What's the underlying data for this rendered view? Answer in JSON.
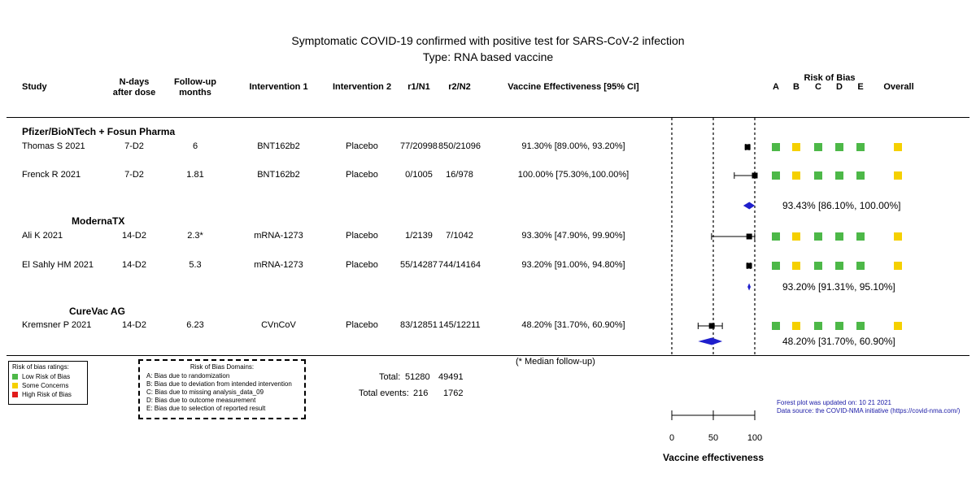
{
  "title_line1": "Symptomatic COVID-19 confirmed with positive test for SARS-CoV-2 infection",
  "title_line2": "Type: RNA based vaccine",
  "headers": {
    "study": "Study",
    "ndays_1": "N-days",
    "ndays_2": "after dose",
    "followup_1": "Follow-up",
    "followup_2": "months",
    "intervention1": "Intervention 1",
    "intervention2": "Intervention 2",
    "r1n1": "r1/N1",
    "r2n2": "r2/N2",
    "ve": "Vaccine Effectiveness [95% CI]",
    "rob": "Risk of Bias",
    "domains": [
      "A",
      "B",
      "C",
      "D",
      "E"
    ],
    "overall": "Overall"
  },
  "groups": [
    {
      "name": "Pfizer/BioNTech + Fosun Pharma",
      "studies": [
        {
          "study": "Thomas S 2021",
          "ndays": "7-D2",
          "followup": "6",
          "int1": "BNT162b2",
          "int2": "Placebo",
          "r1n1": "77/20998",
          "r2n2": "850/21096",
          "ve": "91.30% [89.00%, 93.20%]"
        },
        {
          "study": "Frenck R 2021",
          "ndays": "7-D2",
          "followup": "1.81",
          "int1": "BNT162b2",
          "int2": "Placebo",
          "r1n1": "0/1005",
          "r2n2": "16/978",
          "ve": "100.00% [75.30%,100.00%]"
        }
      ],
      "pooled": "93.43% [86.10%, 100.00%]"
    },
    {
      "name": "ModernaTX",
      "studies": [
        {
          "study": "Ali K 2021",
          "ndays": "14-D2",
          "followup": "2.3*",
          "int1": "mRNA-1273",
          "int2": "Placebo",
          "r1n1": "1/2139",
          "r2n2": "7/1042",
          "ve": "93.30% [47.90%, 99.90%]"
        },
        {
          "study": "El Sahly HM 2021",
          "ndays": "14-D2",
          "followup": "5.3",
          "int1": "mRNA-1273",
          "int2": "Placebo",
          "r1n1": "55/14287",
          "r2n2": "744/14164",
          "ve": "93.20% [91.00%, 94.80%]"
        }
      ],
      "pooled": "93.20% [91.31%, 95.10%]"
    },
    {
      "name": "CureVac AG",
      "studies": [
        {
          "study": "Kremsner P 2021",
          "ndays": "14-D2",
          "followup": "6.23",
          "int1": "CVnCoV",
          "int2": "Placebo",
          "r1n1": "83/12851",
          "r2n2": "145/12211",
          "ve": "48.20% [31.70%, 60.90%]"
        }
      ],
      "pooled": "48.20% [31.70%, 60.90%]"
    }
  ],
  "median_note": "(* Median follow-up)",
  "totals": {
    "label": "Total:",
    "n1": "51280",
    "n2": "49491"
  },
  "total_events": {
    "label": "Total events:",
    "e1": "216",
    "e2": "1762"
  },
  "rob_legend": {
    "title": "Risk of bias ratings:",
    "items": [
      {
        "label": "Low Risk of Bias",
        "color": "#4db848"
      },
      {
        "label": "Some Concerns",
        "color": "#f5d000"
      },
      {
        "label": "High Risk of Bias",
        "color": "#e11b1b"
      }
    ]
  },
  "domains_legend": {
    "title": "Risk of Bias Domains:",
    "items": [
      "A: Bias due to randomization",
      "B: Bias due to deviation from intended intervention",
      "C: Bias due to missing analysis_data_09",
      "D: Bias due to outcome measurement",
      "E: Bias due to selection of reported result"
    ]
  },
  "update_note": "Forest plot was updated on: 10 21 2021",
  "source_note": "Data source: the COVID-NMA initiative (https://covid-nma.com/)",
  "colors": {
    "low": "#4db848",
    "concern": "#f5d000",
    "high": "#e11b1b",
    "diamond": "#1f1fcc",
    "note": "#1a1aa6"
  },
  "chart_data": {
    "type": "forest",
    "xlabel": "Vaccine effectiveness",
    "xlim": [
      0,
      100
    ],
    "ticks": [
      0,
      50,
      100
    ],
    "reference_lines": [
      0,
      50,
      100
    ],
    "studies": [
      {
        "name": "Thomas S 2021",
        "est": 91.3,
        "lo": 89.0,
        "hi": 93.2,
        "rob": [
          "low",
          "concern",
          "low",
          "low",
          "low",
          "concern"
        ]
      },
      {
        "name": "Frenck R 2021",
        "est": 100.0,
        "lo": 75.3,
        "hi": 100.0,
        "rob": [
          "low",
          "concern",
          "low",
          "low",
          "low",
          "concern"
        ]
      },
      {
        "name": "Ali K 2021",
        "est": 93.3,
        "lo": 47.9,
        "hi": 99.9,
        "rob": [
          "low",
          "concern",
          "low",
          "low",
          "low",
          "concern"
        ]
      },
      {
        "name": "El Sahly HM 2021",
        "est": 93.2,
        "lo": 91.0,
        "hi": 94.8,
        "rob": [
          "low",
          "concern",
          "low",
          "low",
          "low",
          "concern"
        ]
      },
      {
        "name": "Kremsner P 2021",
        "est": 48.2,
        "lo": 31.7,
        "hi": 60.9,
        "rob": [
          "low",
          "concern",
          "low",
          "low",
          "low",
          "concern"
        ]
      }
    ],
    "pooled": [
      {
        "group": "Pfizer/BioNTech + Fosun Pharma",
        "est": 93.43,
        "lo": 86.1,
        "hi": 100.0
      },
      {
        "group": "ModernaTX",
        "est": 93.2,
        "lo": 91.31,
        "hi": 95.1
      },
      {
        "group": "CureVac AG",
        "est": 48.2,
        "lo": 31.7,
        "hi": 60.9
      }
    ]
  }
}
